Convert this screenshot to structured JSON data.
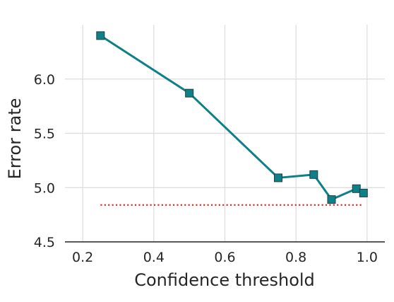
{
  "chart_data": {
    "type": "line",
    "title": "",
    "xlabel": "Confidence threshold",
    "ylabel": "Error rate",
    "xlim": [
      0.15,
      1.05
    ],
    "ylim": [
      4.5,
      6.5
    ],
    "x_ticks": [
      0.2,
      0.4,
      0.6,
      0.8,
      1.0
    ],
    "x_tick_labels": [
      "0.2",
      "0.4",
      "0.6",
      "0.8",
      "1.0"
    ],
    "y_ticks": [
      4.5,
      5.0,
      5.5,
      6.0
    ],
    "y_tick_labels": [
      "4.5",
      "5.0",
      "5.5",
      "6.0"
    ],
    "grid": true,
    "series": [
      {
        "x": [
          0.25,
          0.5,
          0.75,
          0.85,
          0.9,
          0.97,
          0.99
        ],
        "values": [
          6.4,
          5.87,
          5.09,
          5.12,
          4.89,
          4.99,
          4.95
        ],
        "color": "#0e8088",
        "marker": "square"
      }
    ],
    "reference_line": {
      "y": 4.84,
      "x_range": [
        0.25,
        0.99
      ],
      "color": "#d62728",
      "style": "dotted"
    }
  }
}
